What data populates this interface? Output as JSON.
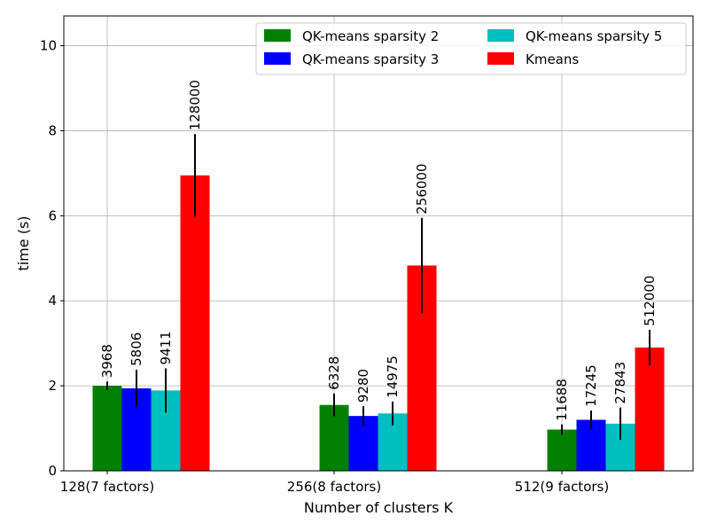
{
  "chart_data": {
    "type": "bar",
    "title": "",
    "xlabel": "Number of clusters K",
    "ylabel": "time (s)",
    "ylim": [
      0,
      10.7
    ],
    "yticks": [
      0,
      2,
      4,
      6,
      8,
      10
    ],
    "grid": true,
    "legend_position": "top-right",
    "categories": [
      "128(7 factors)",
      "256(8 factors)",
      "512(9 factors)"
    ],
    "series": [
      {
        "name": "QK-means sparsity 2",
        "color": "#008000",
        "values": [
          2.0,
          1.55,
          0.97
        ],
        "errors": [
          0.1,
          0.27,
          0.12
        ],
        "labels": [
          "3968",
          "6328",
          "11688"
        ]
      },
      {
        "name": "QK-means sparsity 3",
        "color": "#0000ff",
        "values": [
          1.94,
          1.29,
          1.2
        ],
        "errors": [
          0.44,
          0.23,
          0.22
        ],
        "labels": [
          "5806",
          "9280",
          "17245"
        ]
      },
      {
        "name": "QK-means sparsity 5",
        "color": "#00bfbf",
        "values": [
          1.89,
          1.35,
          1.11
        ],
        "errors": [
          0.52,
          0.28,
          0.38
        ],
        "labels": [
          "9411",
          "14975",
          "27843"
        ]
      },
      {
        "name": "Kmeans",
        "color": "#ff0000",
        "values": [
          6.95,
          4.83,
          2.9
        ],
        "errors": [
          0.97,
          1.12,
          0.42
        ],
        "labels": [
          "128000",
          "256000",
          "512000"
        ]
      }
    ]
  }
}
